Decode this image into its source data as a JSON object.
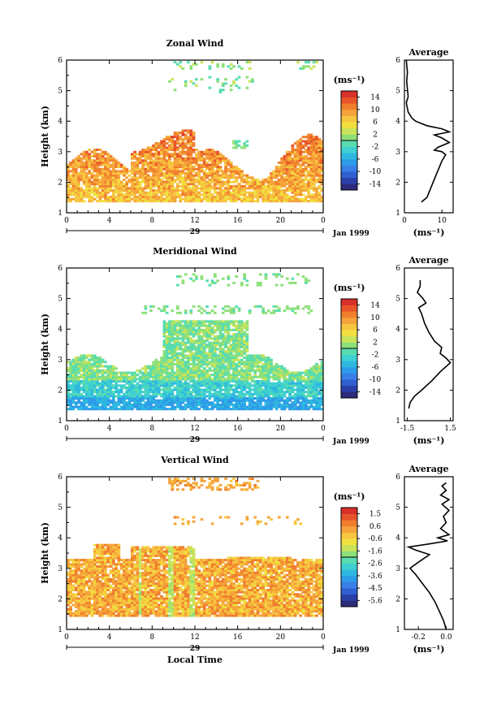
{
  "figure": {
    "x_axis_label": "Local Time",
    "date_label": "Jan 1999",
    "day_label": "29",
    "unit_label": "(ms⁻¹)"
  },
  "chart_data": [
    {
      "type": "heatmap",
      "title": "Zonal Wind",
      "xlabel": "",
      "ylabel": "Height (km)",
      "xticks": [
        "0",
        "4",
        "8",
        "12",
        "16",
        "20",
        "0"
      ],
      "xlim": [
        0,
        24
      ],
      "ylim": [
        1,
        6
      ],
      "yticks": [
        "1",
        "2",
        "3",
        "4",
        "5",
        "6"
      ],
      "colorbar": {
        "label": "(ms⁻¹)",
        "ticks": [
          "14",
          "10",
          "6",
          "2",
          "-2",
          "-6",
          "-10",
          "-14"
        ],
        "range": [
          -16,
          16
        ],
        "colors": [
          "#2d2a7a",
          "#2b3fa8",
          "#2f5fd0",
          "#3a7ee6",
          "#2e9be8",
          "#2eb8e0",
          "#3fd0d0",
          "#59dcb0",
          "#8ee07a",
          "#c8e45a",
          "#f0e040",
          "#f7c640",
          "#f5a33a",
          "#ef7f2e",
          "#e8552a",
          "#d8302a"
        ]
      },
      "average_profile": {
        "title": "Average",
        "xlabel": "(ms⁻¹)",
        "xlim": [
          0,
          13
        ],
        "xticks": [
          "0",
          "10"
        ],
        "ylim": [
          1,
          6
        ],
        "yticks": [
          "1",
          "2",
          "3",
          "4",
          "5",
          "6"
        ],
        "points": [
          [
            4.5,
            1.35
          ],
          [
            6,
            1.5
          ],
          [
            7,
            1.8
          ],
          [
            8,
            2.1
          ],
          [
            9,
            2.4
          ],
          [
            10,
            2.7
          ],
          [
            11,
            2.9
          ],
          [
            10,
            3.0
          ],
          [
            8,
            3.05
          ],
          [
            9,
            3.15
          ],
          [
            12,
            3.3
          ],
          [
            10,
            3.45
          ],
          [
            8,
            3.55
          ],
          [
            12,
            3.65
          ],
          [
            10,
            3.75
          ],
          [
            6,
            3.85
          ],
          [
            3,
            4.0
          ],
          [
            2,
            4.1
          ],
          [
            1,
            4.3
          ],
          [
            0.5,
            4.6
          ],
          [
            1,
            4.8
          ],
          [
            0.6,
            5.3
          ],
          [
            0.8,
            5.6
          ],
          [
            0.5,
            6.0
          ]
        ]
      },
      "data_note": ""
    },
    {
      "type": "heatmap",
      "title": "Meridional Wind",
      "xlabel": "",
      "ylabel": "Height (km)",
      "xticks": [
        "0",
        "4",
        "8",
        "12",
        "16",
        "20",
        "0"
      ],
      "xlim": [
        0,
        24
      ],
      "ylim": [
        1,
        6
      ],
      "yticks": [
        "1",
        "2",
        "3",
        "4",
        "5",
        "6"
      ],
      "colorbar": {
        "label": "(ms⁻¹)",
        "ticks": [
          "14",
          "10",
          "6",
          "2",
          "-2",
          "-6",
          "-10",
          "-14"
        ],
        "range": [
          -16,
          16
        ],
        "colors": [
          "#2d2a7a",
          "#2b3fa8",
          "#2f5fd0",
          "#3a7ee6",
          "#2e9be8",
          "#2eb8e0",
          "#3fd0d0",
          "#59dcb0",
          "#8ee07a",
          "#c8e45a",
          "#f0e040",
          "#f7c640",
          "#f5a33a",
          "#ef7f2e",
          "#e8552a",
          "#d8302a"
        ]
      },
      "average_profile": {
        "title": "Average",
        "xlabel": "(ms⁻¹)",
        "xlim": [
          -1.7,
          1.7
        ],
        "xticks": [
          "-1.5",
          "1.5"
        ],
        "ylim": [
          1,
          6
        ],
        "yticks": [
          "1",
          "2",
          "3",
          "4",
          "5",
          "6"
        ],
        "points": [
          [
            -1.4,
            1.4
          ],
          [
            -1.3,
            1.6
          ],
          [
            -1.0,
            1.8
          ],
          [
            -0.5,
            2.0
          ],
          [
            0.2,
            2.3
          ],
          [
            0.8,
            2.6
          ],
          [
            1.5,
            2.9
          ],
          [
            1.2,
            3.05
          ],
          [
            0.8,
            3.2
          ],
          [
            0.9,
            3.4
          ],
          [
            0.4,
            3.6
          ],
          [
            0.0,
            3.9
          ],
          [
            -0.3,
            4.2
          ],
          [
            -0.5,
            4.5
          ],
          [
            -0.7,
            4.7
          ],
          [
            -0.2,
            4.85
          ],
          [
            -0.4,
            5.0
          ],
          [
            -0.8,
            5.2
          ],
          [
            -0.6,
            5.4
          ],
          [
            -0.6,
            5.6
          ]
        ]
      },
      "data_note": ""
    },
    {
      "type": "heatmap",
      "title": "Vertical Wind",
      "xlabel": "Local Time",
      "ylabel": "Height (km)",
      "xticks": [
        "0",
        "4",
        "8",
        "12",
        "16",
        "20",
        "0"
      ],
      "xlim": [
        0,
        24
      ],
      "ylim": [
        1,
        6
      ],
      "yticks": [
        "1",
        "2",
        "3",
        "4",
        "5",
        "6"
      ],
      "colorbar": {
        "label": "(ms⁻¹)",
        "ticks": [
          "1.5",
          "0.6",
          "-0.6",
          "-1.6",
          "-2.6",
          "-3.6",
          "-4.5",
          "-5.6"
        ],
        "range": [
          -6.0,
          2.0
        ],
        "colors": [
          "#2d2a7a",
          "#2b3fa8",
          "#2f5fd0",
          "#3a7ee6",
          "#2e9be8",
          "#2eb8e0",
          "#3fd0d0",
          "#59dcb0",
          "#8ee07a",
          "#c8e45a",
          "#f0e040",
          "#f7c640",
          "#f5a33a",
          "#ef7f2e",
          "#e8552a",
          "#d8302a"
        ]
      },
      "average_profile": {
        "title": "Average",
        "xlabel": "(ms⁻¹)",
        "xlim": [
          -0.3,
          0.05
        ],
        "xticks": [
          "-0.2",
          "0.0"
        ],
        "ylim": [
          1,
          6
        ],
        "yticks": [
          "1",
          "2",
          "3",
          "4",
          "5",
          "6"
        ],
        "points": [
          [
            0.0,
            1.0
          ],
          [
            -0.02,
            1.3
          ],
          [
            -0.05,
            1.6
          ],
          [
            -0.08,
            1.9
          ],
          [
            -0.12,
            2.2
          ],
          [
            -0.17,
            2.5
          ],
          [
            -0.22,
            2.8
          ],
          [
            -0.26,
            3.0
          ],
          [
            -0.2,
            3.2
          ],
          [
            -0.12,
            3.45
          ],
          [
            -0.22,
            3.6
          ],
          [
            -0.27,
            3.7
          ],
          [
            -0.12,
            3.8
          ],
          [
            0.01,
            3.9
          ],
          [
            -0.06,
            4.0
          ],
          [
            0.02,
            4.1
          ],
          [
            -0.04,
            4.3
          ],
          [
            0.0,
            4.5
          ],
          [
            -0.02,
            4.7
          ],
          [
            0.02,
            4.9
          ],
          [
            -0.03,
            5.1
          ],
          [
            0.02,
            5.25
          ],
          [
            -0.04,
            5.4
          ],
          [
            0.0,
            5.55
          ],
          [
            -0.03,
            5.7
          ],
          [
            0.0,
            5.8
          ]
        ]
      },
      "data_note": ""
    }
  ]
}
